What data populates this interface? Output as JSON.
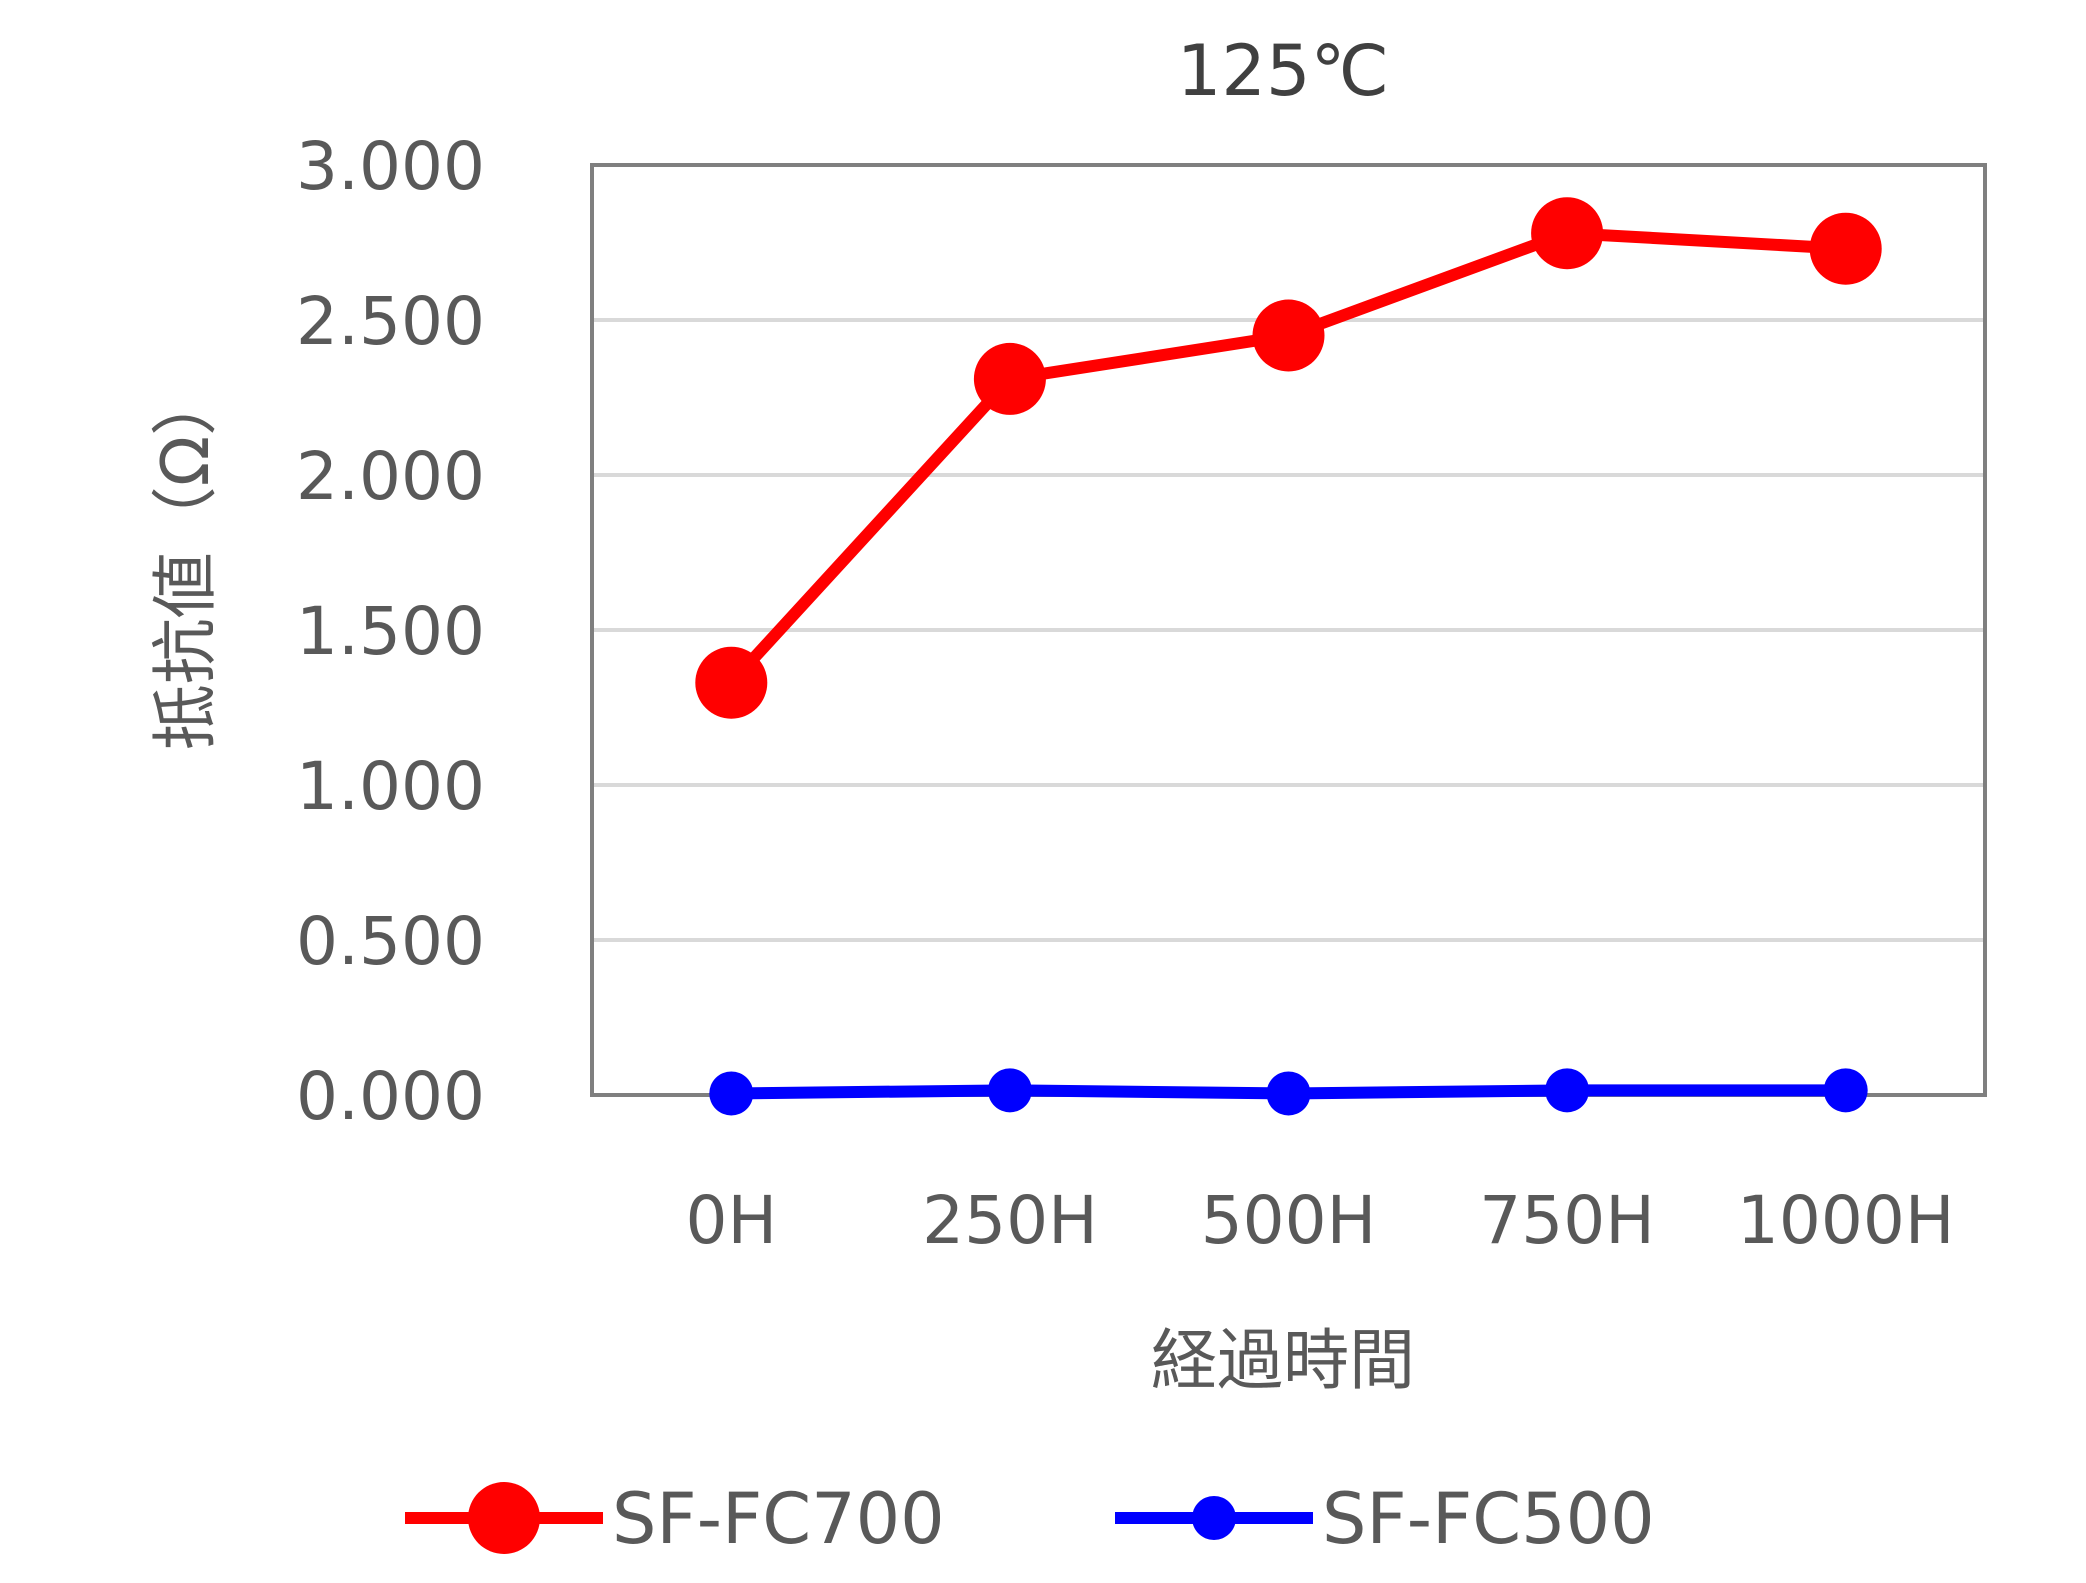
{
  "chart_data": {
    "type": "line",
    "title": "125℃",
    "xlabel": "経過時間",
    "ylabel": "抵抗値（Ω）",
    "categories": [
      "0H",
      "250H",
      "500H",
      "750H",
      "1000H"
    ],
    "ylim": [
      0,
      3
    ],
    "yticks": [
      "0.000",
      "0.500",
      "1.000",
      "1.500",
      "2.000",
      "2.500",
      "3.000"
    ],
    "grid": true,
    "legend_position": "bottom",
    "series": [
      {
        "name": "SF-FC700",
        "color": "#ff0000",
        "values": [
          1.33,
          2.31,
          2.45,
          2.78,
          2.73
        ]
      },
      {
        "name": "SF-FC500",
        "color": "#0000ff",
        "values": [
          0.005,
          0.015,
          0.005,
          0.015,
          0.015
        ]
      }
    ]
  }
}
